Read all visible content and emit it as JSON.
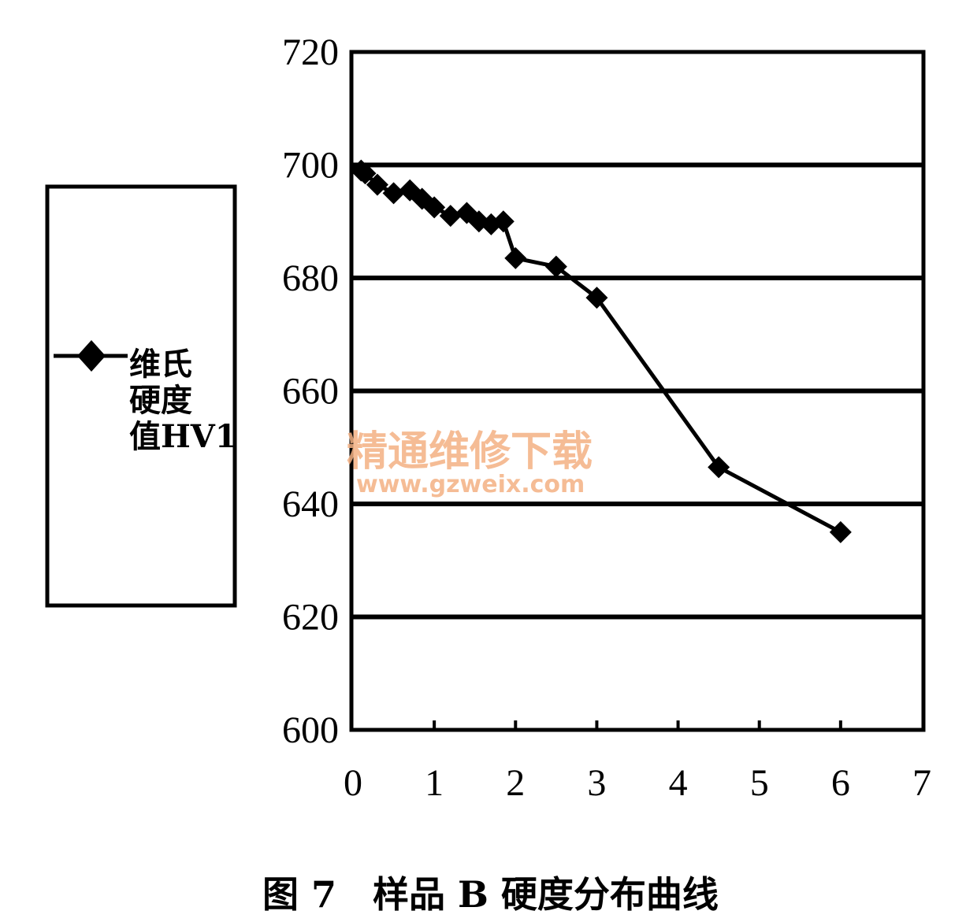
{
  "chart_data": {
    "type": "line",
    "title": "",
    "xlabel": "",
    "ylabel": "",
    "xlim": [
      0,
      7
    ],
    "ylim": [
      600,
      720
    ],
    "x_ticks": [
      0,
      1,
      2,
      3,
      4,
      5,
      6,
      7
    ],
    "y_ticks": [
      600,
      620,
      640,
      660,
      680,
      700,
      720
    ],
    "grid": "horizontal",
    "legend_placement": "left",
    "series": [
      {
        "name": "维氏\n硬度\n值HV1",
        "marker": "diamond",
        "color": "#000000",
        "x": [
          0.1,
          0.15,
          0.3,
          0.5,
          0.7,
          0.85,
          1.0,
          1.2,
          1.4,
          1.55,
          1.7,
          1.85,
          2.0,
          2.5,
          3.0,
          4.5,
          6.0
        ],
        "y": [
          699.0,
          698.5,
          696.5,
          695.0,
          695.5,
          694.0,
          692.5,
          691.0,
          691.5,
          690.0,
          689.5,
          690.0,
          683.5,
          682.0,
          676.5,
          646.5,
          635.0
        ]
      }
    ]
  },
  "caption": "图 7　样品 B 硬度分布曲线",
  "watermark": {
    "line1": "精通维修下载",
    "line2": "www.gzweix.com",
    "color": "#f4b183"
  }
}
